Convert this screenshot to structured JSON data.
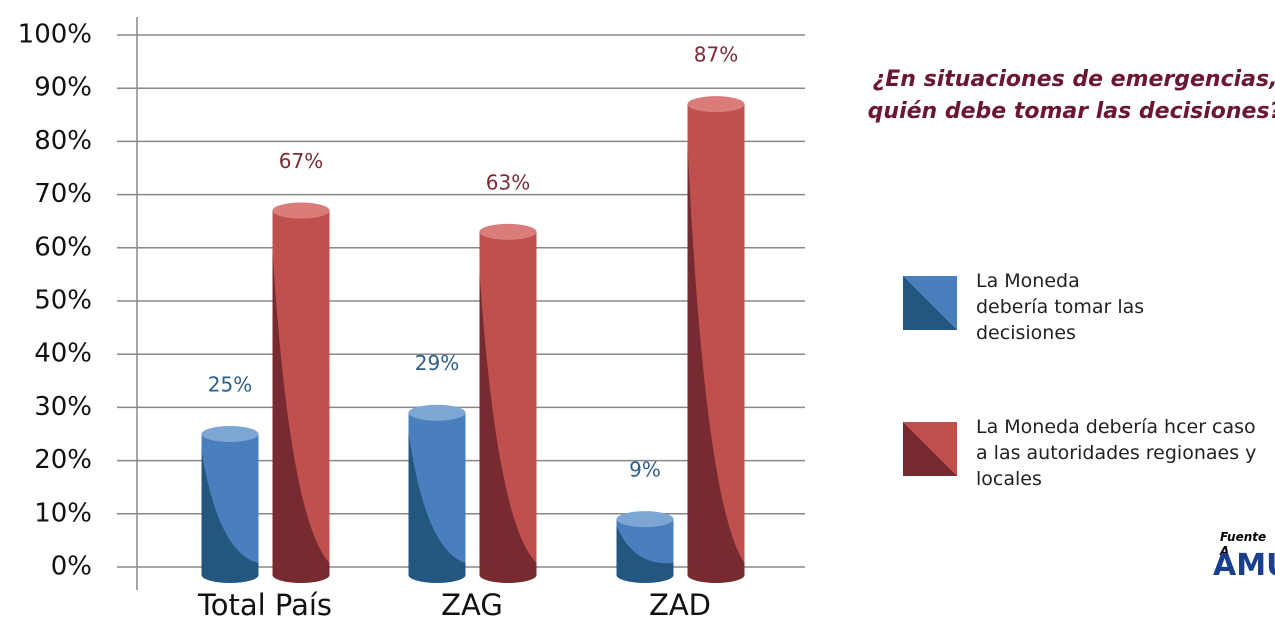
{
  "chart_data": {
    "type": "bar",
    "title": "¿En situaciones de emergencias, quién debe tomar las decisiones?",
    "categories": [
      "Total País",
      "ZAG",
      "ZAD"
    ],
    "series": [
      {
        "name": "La Moneda debería tomar las decisiones",
        "color": "#4a7fbd",
        "values": [
          25,
          29,
          9
        ],
        "value_labels": [
          "25%",
          "29%",
          "9%"
        ]
      },
      {
        "name": "La Moneda debería hcer caso a las autoridades regionaes y locales",
        "color": "#c0504d",
        "values": [
          67,
          63,
          87
        ],
        "value_labels": [
          "67%",
          "63%",
          "87%"
        ]
      }
    ],
    "ylim": [
      0,
      100
    ],
    "yticks": [
      {
        "value": 0,
        "label": "0%"
      },
      {
        "value": 10,
        "label": "10%"
      },
      {
        "value": 20,
        "label": "20%"
      },
      {
        "value": 30,
        "label": "30%"
      },
      {
        "value": 40,
        "label": "40%"
      },
      {
        "value": 50,
        "label": "50%"
      },
      {
        "value": 60,
        "label": "60%"
      },
      {
        "value": 70,
        "label": "70%"
      },
      {
        "value": 80,
        "label": "80%"
      },
      {
        "value": 90,
        "label": "90%"
      },
      {
        "value": 100,
        "label": "100%"
      }
    ],
    "grid": true,
    "source": "Fuente A",
    "logo": "AMU"
  }
}
